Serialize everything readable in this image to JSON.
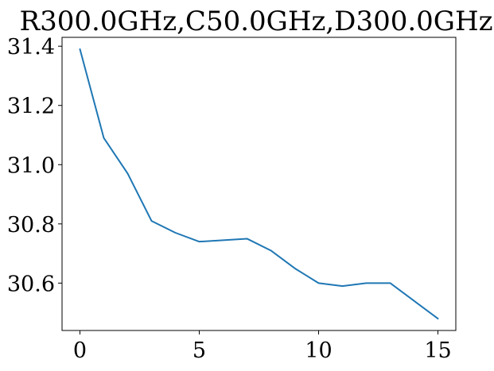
{
  "chart_data": {
    "type": "line",
    "title": "R300.0GHz,C50.0GHz,D300.0GHz",
    "xlabel": "",
    "ylabel": "",
    "x": [
      0,
      1,
      2,
      3,
      4,
      5,
      6,
      7,
      8,
      9,
      10,
      11,
      12,
      13,
      14,
      15
    ],
    "series": [
      {
        "values": [
          31.39,
          31.09,
          30.97,
          30.81,
          30.77,
          30.74,
          30.745,
          30.75,
          30.71,
          30.65,
          30.6,
          30.59,
          30.6,
          30.6,
          30.54,
          30.48
        ],
        "color": "#1f77b4"
      }
    ],
    "xlim": [
      -0.75,
      15.75
    ],
    "ylim": [
      30.44,
      31.43
    ],
    "xticks": [
      0,
      5,
      10,
      15
    ],
    "xtick_labels": [
      "0",
      "5",
      "10",
      "15"
    ],
    "yticks": [
      30.6,
      30.8,
      31.0,
      31.2,
      31.4
    ],
    "ytick_labels": [
      "30.6",
      "30.8",
      "31.0",
      "31.2",
      "31.4"
    ],
    "grid": false,
    "legend": "none"
  }
}
